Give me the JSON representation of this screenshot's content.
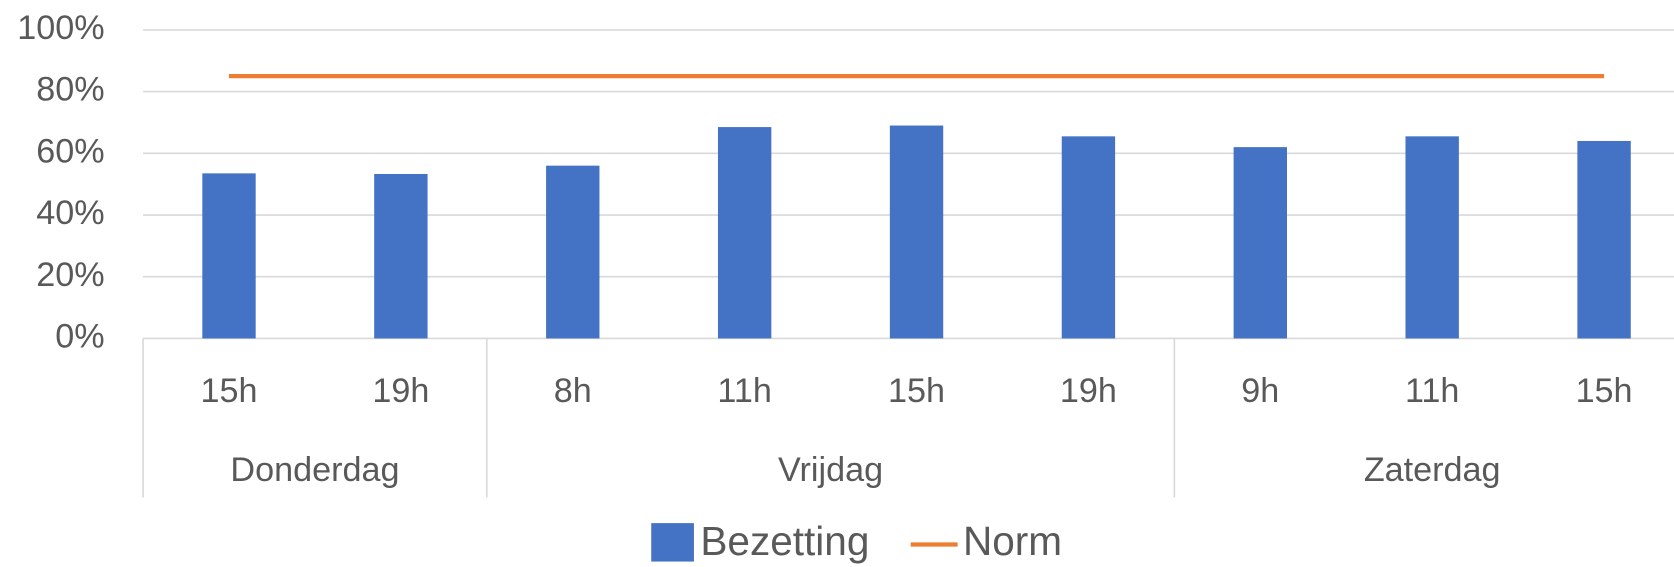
{
  "chart_data": {
    "type": "bar",
    "categories": [
      "15h",
      "19h",
      "8h",
      "11h",
      "15h",
      "19h",
      "9h",
      "11h",
      "15h"
    ],
    "groups": [
      {
        "label": "Donderdag",
        "count": 2
      },
      {
        "label": "Vrijdag",
        "count": 4
      },
      {
        "label": "Zaterdag",
        "count": 3
      }
    ],
    "series": [
      {
        "name": "Bezetting",
        "type": "bar",
        "color": "#4472c4",
        "values": [
          53.5,
          53.3,
          56,
          68.5,
          69,
          65.5,
          62,
          65.5,
          64
        ]
      },
      {
        "name": "Norm",
        "type": "line",
        "color": "#ed7d31",
        "values": [
          85,
          85,
          85,
          85,
          85,
          85,
          85,
          85,
          85
        ]
      }
    ],
    "ylim": [
      0,
      100
    ],
    "yticks": [
      {
        "value": 0,
        "label": "0%"
      },
      {
        "value": 20,
        "label": "20%"
      },
      {
        "value": 40,
        "label": "40%"
      },
      {
        "value": 60,
        "label": "60%"
      },
      {
        "value": 80,
        "label": "80%"
      },
      {
        "value": 100,
        "label": "100%"
      }
    ],
    "grid": true,
    "legend": "bottom"
  }
}
